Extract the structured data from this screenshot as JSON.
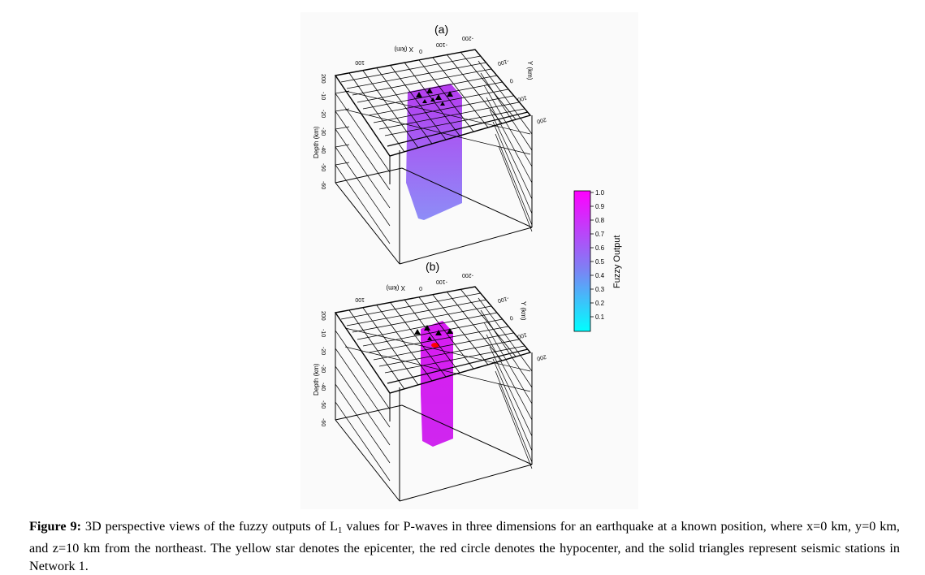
{
  "figure": {
    "panels": [
      {
        "label": "(a)",
        "x_axis_label": "X (km)",
        "y_axis_label": "Y (km)",
        "z_axis_label": "Depth (km)",
        "x_ticks": [
          "100",
          "0",
          "-100",
          "-200"
        ],
        "y_ticks": [
          "-100",
          "0",
          "100",
          "200"
        ],
        "z_ticks": [
          "0",
          "-10",
          "-20",
          "-30",
          "-40",
          "-50",
          "-60"
        ],
        "extra_tick": "200"
      },
      {
        "label": "(b)",
        "x_axis_label": "X (km)",
        "y_axis_label": "Y (km)",
        "z_axis_label": "Depth (km)",
        "x_ticks": [
          "100",
          "0",
          "-100",
          "-200"
        ],
        "y_ticks": [
          "-100",
          "0",
          "100",
          "200"
        ],
        "z_ticks": [
          "0",
          "-10",
          "-20",
          "-30",
          "-40",
          "-50",
          "-60"
        ],
        "extra_tick": "200"
      }
    ],
    "colorbar": {
      "label": "Fuzzy Output",
      "ticks": [
        "1.0",
        "0.9",
        "0.8",
        "0.7",
        "0.6",
        "0.5",
        "0.4",
        "0.3",
        "0.2",
        "0.1"
      ],
      "color_low": "#00ffff",
      "color_high": "#ff00ff"
    },
    "colors": {
      "column_a_top": "#b03cf0",
      "column_a_bottom": "#8a7df5",
      "column_b": "#d51ef2",
      "hypocenter": "#ff0000",
      "station": "#000000"
    }
  },
  "caption": {
    "label": "Figure 9:",
    "text_part1": "3D perspective views of the fuzzy outputs of L",
    "subscript": "1",
    "text_part2": "values for P-waves in three dimensions for an earthquake at a known position, where x=0 km, y=0 km, and z=10 km from the northeast. The yellow star denotes the epicenter, the red circle denotes the hypocenter, and the solid triangles represent seismic stations in Network 1."
  }
}
